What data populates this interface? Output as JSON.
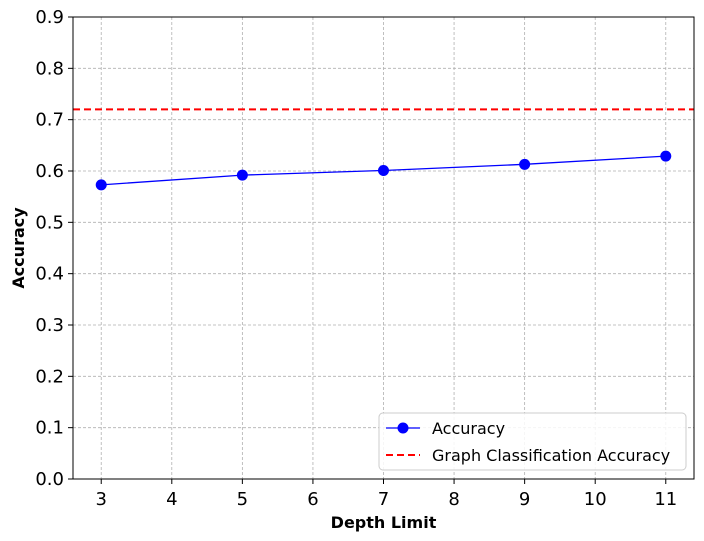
{
  "chart_data": {
    "type": "line",
    "title": "",
    "xlabel": "Depth Limit",
    "ylabel": "Accuracy",
    "xlim": [
      2.6,
      11.4
    ],
    "ylim": [
      0.0,
      0.9
    ],
    "xticks": [
      3,
      4,
      5,
      6,
      7,
      8,
      9,
      10,
      11
    ],
    "yticks": [
      0.0,
      0.1,
      0.2,
      0.3,
      0.4,
      0.5,
      0.6,
      0.7,
      0.8,
      0.9
    ],
    "x_tick_labels": [
      "3",
      "4",
      "5",
      "6",
      "7",
      "8",
      "9",
      "10",
      "11"
    ],
    "y_tick_labels": [
      "0.0",
      "0.1",
      "0.2",
      "0.3",
      "0.4",
      "0.5",
      "0.6",
      "0.7",
      "0.8",
      "0.9"
    ],
    "grid": true,
    "legend_position": "lower-right",
    "series": [
      {
        "name": "Accuracy",
        "x": [
          3,
          5,
          7,
          9,
          11
        ],
        "y": [
          0.573,
          0.592,
          0.601,
          0.613,
          0.629
        ],
        "color": "#0000ff",
        "marker": "circle",
        "line_style": "solid"
      }
    ],
    "reference_lines": [
      {
        "name": "Graph Classification Accuracy",
        "y": 0.72,
        "color": "#ff0000",
        "line_style": "dashed"
      }
    ]
  }
}
